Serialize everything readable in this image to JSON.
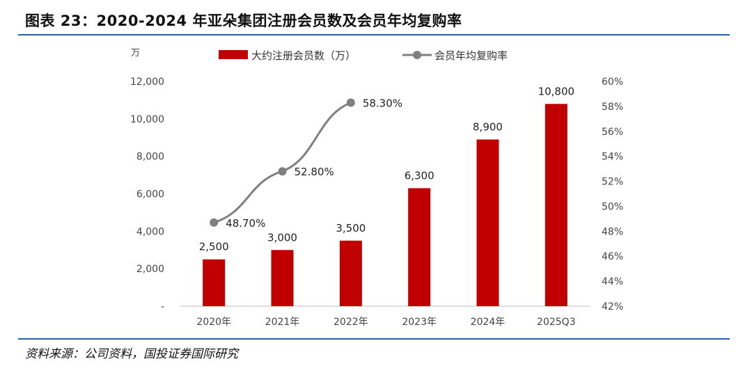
{
  "title": "图表 23：2020-2024 年亚朵集团注册会员数及会员年均复购率",
  "source": "资料来源：公司资料，国投证券国际研究",
  "chart_data": {
    "type": "bar+line",
    "categories": [
      "2020年",
      "2021年",
      "2022年",
      "2023年",
      "2024年",
      "2025Q3"
    ],
    "y_unit": "万",
    "y_ticks": [
      "-",
      "2,000",
      "4,000",
      "6,000",
      "8,000",
      "10,000",
      "12,000"
    ],
    "y2_ticks": [
      "42%",
      "44%",
      "46%",
      "48%",
      "50%",
      "52%",
      "54%",
      "56%",
      "58%",
      "60%"
    ],
    "ylim": [
      0,
      12000
    ],
    "y2lim": [
      42,
      60
    ],
    "series": [
      {
        "name": "大约注册会员数（万）",
        "type": "bar",
        "axis": "left",
        "color": "#c00000",
        "values": [
          2500,
          3000,
          3500,
          6300,
          8900,
          10800
        ],
        "labels": [
          "2,500",
          "3,000",
          "3,500",
          "6,300",
          "8,900",
          "10,800"
        ]
      },
      {
        "name": "会员年均复购率",
        "type": "line",
        "axis": "right",
        "color": "#7f7f7f",
        "values": [
          48.7,
          52.8,
          58.3,
          null,
          null,
          null
        ],
        "labels": [
          "48.70%",
          "52.80%",
          "58.30%"
        ]
      }
    ],
    "legend_position": "top"
  }
}
